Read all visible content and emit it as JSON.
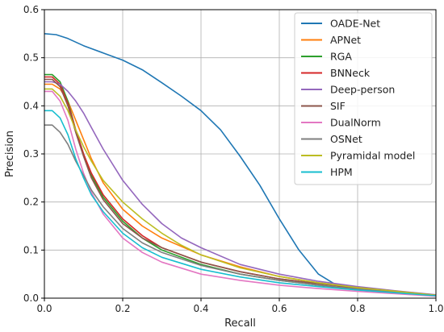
{
  "chart_data": {
    "type": "line",
    "title": "",
    "xlabel": "Recall",
    "ylabel": "Precision",
    "xlim": [
      0.0,
      1.0
    ],
    "ylim": [
      0.0,
      0.6
    ],
    "xticks": [
      "0.0",
      "0.2",
      "0.4",
      "0.6",
      "0.8",
      "1.0"
    ],
    "yticks": [
      "0.0",
      "0.1",
      "0.2",
      "0.3",
      "0.4",
      "0.5",
      "0.6"
    ],
    "grid": true,
    "legend_position": "top-right",
    "series": [
      {
        "name": "OADE-Net",
        "color": "#1f77b4",
        "x": [
          0,
          0.03,
          0.06,
          0.1,
          0.15,
          0.2,
          0.25,
          0.3,
          0.35,
          0.4,
          0.45,
          0.5,
          0.55,
          0.6,
          0.65,
          0.7,
          0.75,
          0.8,
          0.85,
          0.9,
          0.95,
          1.0
        ],
        "y": [
          0.55,
          0.548,
          0.54,
          0.525,
          0.51,
          0.495,
          0.475,
          0.448,
          0.42,
          0.39,
          0.35,
          0.295,
          0.235,
          0.165,
          0.1,
          0.05,
          0.025,
          0.02,
          0.016,
          0.012,
          0.009,
          0.006
        ]
      },
      {
        "name": "APNet",
        "color": "#ff7f0e",
        "x": [
          0,
          0.02,
          0.04,
          0.06,
          0.08,
          0.1,
          0.12,
          0.15,
          0.2,
          0.25,
          0.3,
          0.4,
          0.5,
          0.6,
          0.7,
          0.8,
          0.9,
          1.0
        ],
        "y": [
          0.445,
          0.445,
          0.435,
          0.41,
          0.37,
          0.33,
          0.29,
          0.24,
          0.185,
          0.15,
          0.125,
          0.09,
          0.065,
          0.045,
          0.032,
          0.022,
          0.014,
          0.006
        ]
      },
      {
        "name": "RGA",
        "color": "#2ca02c",
        "x": [
          0,
          0.02,
          0.04,
          0.06,
          0.08,
          0.1,
          0.12,
          0.15,
          0.2,
          0.25,
          0.3,
          0.4,
          0.5,
          0.6,
          0.7,
          0.8,
          0.9,
          1.0
        ],
        "y": [
          0.465,
          0.465,
          0.45,
          0.41,
          0.35,
          0.3,
          0.255,
          0.21,
          0.16,
          0.125,
          0.1,
          0.07,
          0.05,
          0.037,
          0.027,
          0.019,
          0.012,
          0.005
        ]
      },
      {
        "name": "BNNeck",
        "color": "#d62728",
        "x": [
          0,
          0.02,
          0.04,
          0.06,
          0.08,
          0.1,
          0.12,
          0.15,
          0.2,
          0.25,
          0.3,
          0.4,
          0.5,
          0.6,
          0.7,
          0.8,
          0.9,
          1.0
        ],
        "y": [
          0.46,
          0.46,
          0.445,
          0.405,
          0.35,
          0.3,
          0.26,
          0.215,
          0.165,
          0.13,
          0.105,
          0.075,
          0.055,
          0.04,
          0.03,
          0.022,
          0.014,
          0.006
        ]
      },
      {
        "name": "Deep-person",
        "color": "#9467bd",
        "x": [
          0,
          0.02,
          0.04,
          0.06,
          0.08,
          0.1,
          0.12,
          0.15,
          0.2,
          0.25,
          0.3,
          0.35,
          0.4,
          0.5,
          0.6,
          0.7,
          0.8,
          0.9,
          1.0
        ],
        "y": [
          0.45,
          0.45,
          0.445,
          0.43,
          0.41,
          0.385,
          0.355,
          0.31,
          0.245,
          0.195,
          0.155,
          0.125,
          0.105,
          0.07,
          0.05,
          0.035,
          0.024,
          0.015,
          0.007
        ]
      },
      {
        "name": "SIF",
        "color": "#8c564b",
        "x": [
          0,
          0.02,
          0.04,
          0.06,
          0.08,
          0.1,
          0.12,
          0.15,
          0.2,
          0.25,
          0.3,
          0.4,
          0.5,
          0.6,
          0.7,
          0.8,
          0.9,
          1.0
        ],
        "y": [
          0.455,
          0.455,
          0.44,
          0.4,
          0.345,
          0.295,
          0.25,
          0.205,
          0.155,
          0.125,
          0.105,
          0.075,
          0.055,
          0.04,
          0.03,
          0.022,
          0.014,
          0.006
        ]
      },
      {
        "name": "DualNorm",
        "color": "#e377c2",
        "x": [
          0,
          0.02,
          0.04,
          0.06,
          0.08,
          0.1,
          0.12,
          0.15,
          0.2,
          0.25,
          0.3,
          0.4,
          0.5,
          0.6,
          0.7,
          0.8,
          0.9,
          1.0
        ],
        "y": [
          0.43,
          0.43,
          0.41,
          0.37,
          0.31,
          0.26,
          0.22,
          0.175,
          0.125,
          0.095,
          0.075,
          0.05,
          0.037,
          0.027,
          0.02,
          0.014,
          0.009,
          0.004
        ]
      },
      {
        "name": "OSNet",
        "color": "#7f7f7f",
        "x": [
          0,
          0.02,
          0.04,
          0.06,
          0.08,
          0.1,
          0.12,
          0.15,
          0.2,
          0.25,
          0.3,
          0.4,
          0.5,
          0.6,
          0.7,
          0.8,
          0.9,
          1.0
        ],
        "y": [
          0.36,
          0.36,
          0.345,
          0.32,
          0.285,
          0.255,
          0.225,
          0.19,
          0.145,
          0.115,
          0.095,
          0.068,
          0.05,
          0.037,
          0.027,
          0.019,
          0.012,
          0.005
        ]
      },
      {
        "name": "Pyramidal model",
        "color": "#bcbd22",
        "x": [
          0,
          0.02,
          0.04,
          0.06,
          0.08,
          0.1,
          0.12,
          0.15,
          0.2,
          0.25,
          0.3,
          0.35,
          0.4,
          0.5,
          0.6,
          0.7,
          0.8,
          0.9,
          1.0
        ],
        "y": [
          0.435,
          0.435,
          0.42,
          0.39,
          0.35,
          0.315,
          0.285,
          0.245,
          0.2,
          0.165,
          0.135,
          0.11,
          0.09,
          0.063,
          0.045,
          0.032,
          0.022,
          0.014,
          0.006
        ]
      },
      {
        "name": "HPM",
        "color": "#17becf",
        "x": [
          0,
          0.02,
          0.04,
          0.06,
          0.08,
          0.1,
          0.12,
          0.15,
          0.2,
          0.25,
          0.3,
          0.4,
          0.5,
          0.6,
          0.7,
          0.8,
          0.9,
          1.0
        ],
        "y": [
          0.39,
          0.39,
          0.375,
          0.34,
          0.29,
          0.25,
          0.215,
          0.18,
          0.135,
          0.105,
          0.085,
          0.06,
          0.044,
          0.032,
          0.024,
          0.017,
          0.011,
          0.005
        ]
      }
    ]
  }
}
